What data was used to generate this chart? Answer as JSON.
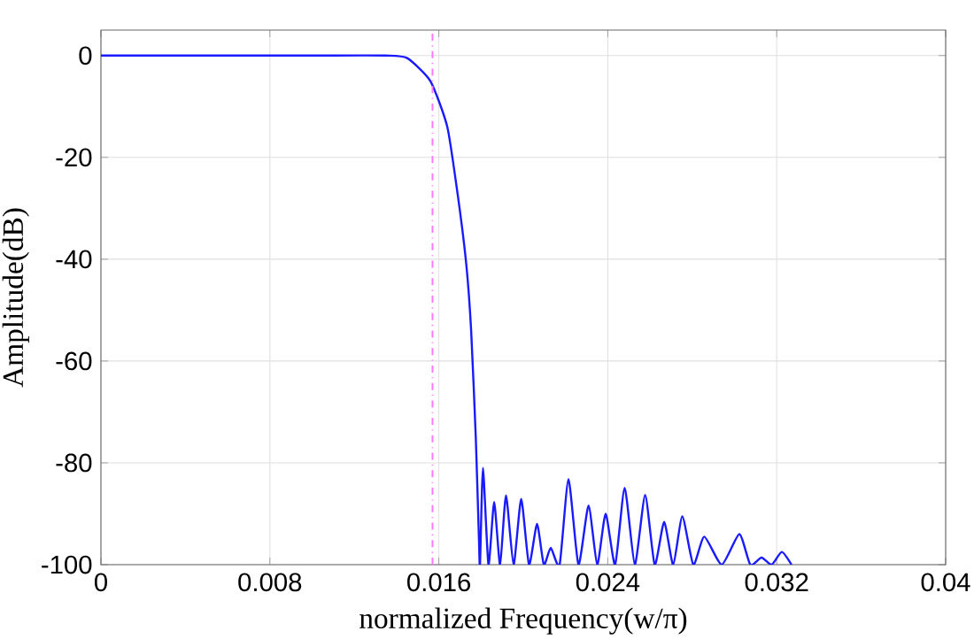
{
  "chart_data": {
    "type": "line",
    "xlabel": "normalized Frequency(w/π)",
    "ylabel": "Amplitude(dB)",
    "xlim": [
      0,
      0.04
    ],
    "ylim": [
      -100,
      5
    ],
    "xticks": [
      0,
      0.008,
      0.016,
      0.024,
      0.032,
      0.04
    ],
    "yticks": [
      -100,
      -80,
      -60,
      -40,
      -20,
      0
    ],
    "grid": true,
    "marker": "none",
    "line_style": "solid",
    "ref_lines": [
      {
        "axis": "x",
        "value": 0.0157,
        "color": "#ff77ff",
        "line_style": "dashdot"
      }
    ],
    "series": [
      {
        "color": "#1a1aff",
        "x": [
          0,
          0.005,
          0.01,
          0.0135,
          0.0145,
          0.0156,
          0.0164,
          0.0169,
          0.0173,
          0.01753,
          0.01775,
          0.0179,
          0.01795,
          0.01809,
          0.01835,
          0.01862,
          0.0189,
          0.01918,
          0.01954,
          0.0199,
          0.02027,
          0.02065,
          0.02097,
          0.0213,
          0.02172,
          0.02214,
          0.02261,
          0.02309,
          0.0235,
          0.0239,
          0.02435,
          0.0248,
          0.02528,
          0.02577,
          0.02622,
          0.02667,
          0.0271,
          0.02753,
          0.02805,
          0.02857,
          0.0294,
          0.03023,
          0.03075,
          0.03128,
          0.03176,
          0.03224,
          0.0327
        ],
        "values": [
          0,
          0,
          0,
          0,
          -0.5,
          -5,
          -14,
          -27.5,
          -41,
          -54,
          -75,
          -95,
          -100,
          -81,
          -100,
          -87.7,
          -100,
          -86.4,
          -100,
          -87.1,
          -100,
          -92,
          -100,
          -96.7,
          -100,
          -83.2,
          -100,
          -88.4,
          -100,
          -90,
          -100,
          -84.9,
          -100,
          -86.3,
          -100,
          -91.6,
          -100,
          -90.5,
          -100,
          -94.5,
          -100,
          -94,
          -100,
          -98.6,
          -100,
          -97.5,
          -100
        ]
      }
    ]
  }
}
